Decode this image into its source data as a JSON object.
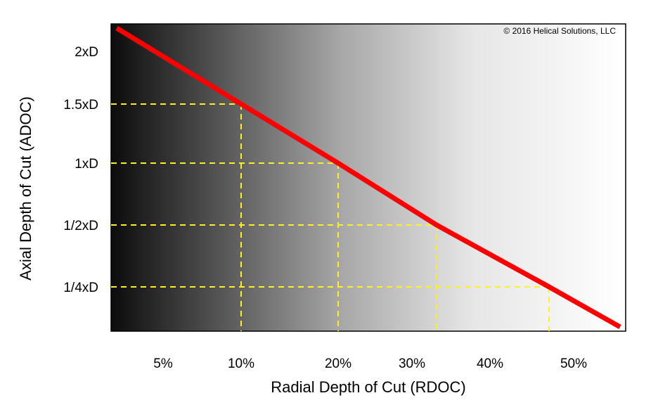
{
  "chart_data": {
    "type": "line",
    "title": "",
    "copyright": "© 2016 Helical Solutions, LLC",
    "xlabel": "Radial Depth of Cut (RDOC)",
    "ylabel": "Axial Depth of Cut (ADOC)",
    "x_ticks": [
      {
        "label": "5%",
        "value": 5
      },
      {
        "label": "10%",
        "value": 10
      },
      {
        "label": "20%",
        "value": 20
      },
      {
        "label": "30%",
        "value": 30
      },
      {
        "label": "40%",
        "value": 40
      },
      {
        "label": "50%",
        "value": 50
      }
    ],
    "y_ticks": [
      {
        "label": "2xD",
        "value": 2
      },
      {
        "label": "1.5xD",
        "value": 1.5
      },
      {
        "label": "1xD",
        "value": 1
      },
      {
        "label": "1/2xD",
        "value": 0.5
      },
      {
        "label": "1/4xD",
        "value": 0.25
      }
    ],
    "series": [
      {
        "color": "#ff0000",
        "x": [
          1,
          10,
          20,
          33,
          47,
          57
        ],
        "y": [
          2.25,
          1.5,
          1.0,
          0.5,
          0.25,
          0.05
        ]
      }
    ],
    "reference_lines": [
      {
        "x": 10,
        "y": 1.5
      },
      {
        "x": 20,
        "y": 1.0
      },
      {
        "x": 33,
        "y": 0.5
      },
      {
        "x": 47,
        "y": 0.25
      }
    ],
    "reference_line_color": "#ffee22",
    "background": "gradient black-to-white (left to right)",
    "grid": false
  }
}
